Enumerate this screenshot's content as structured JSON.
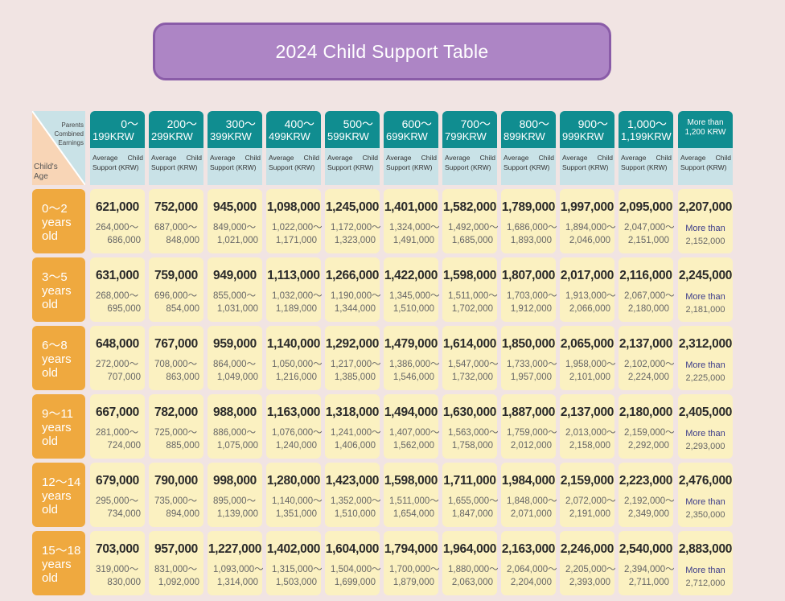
{
  "title": "2024 Child Support  Table",
  "corner": {
    "top_label": [
      "Parents",
      "Combined",
      "Earnings"
    ],
    "bottom_label": [
      "Child's",
      "Age"
    ]
  },
  "columns": [
    {
      "r1": "0〜",
      "r2": "199KRW",
      "sub": "Average Child Support (KRW)"
    },
    {
      "r1": "200〜",
      "r2": "299KRW",
      "sub": "Average Child Support (KRW)"
    },
    {
      "r1": "300〜",
      "r2": "399KRW",
      "sub": "Average Child Support (KRW)"
    },
    {
      "r1": "400〜",
      "r2": "499KRW",
      "sub": "Average Child Support (KRW)"
    },
    {
      "r1": "500〜",
      "r2": "599KRW",
      "sub": "Average Child Support (KRW)"
    },
    {
      "r1": "600〜",
      "r2": "699KRW",
      "sub": "Average Child Support (KRW)"
    },
    {
      "r1": "700〜",
      "r2": "799KRW",
      "sub": "Average Child Support (KRW)"
    },
    {
      "r1": "800〜",
      "r2": "899KRW",
      "sub": "Average Child Support (KRW)"
    },
    {
      "r1": "900〜",
      "r2": "999KRW",
      "sub": "Average Child Support (KRW)"
    },
    {
      "r1": "1,000〜",
      "r2": "1,199KRW",
      "sub": "Average Child Support (KRW)"
    },
    {
      "r1": "More than",
      "r2": "1,200 KRW",
      "sub": "Average Child Support (KRW)",
      "more": true
    }
  ],
  "rows": [
    {
      "age": [
        "0〜2",
        "years",
        "old"
      ],
      "cells": [
        [
          "621,000",
          "264,000〜",
          "686,000"
        ],
        [
          "752,000",
          "687,000〜",
          "848,000"
        ],
        [
          "945,000",
          "849,000〜",
          "1,021,000"
        ],
        [
          "1,098,000",
          "1,022,000〜",
          "1,171,000"
        ],
        [
          "1,245,000",
          "1,172,000〜",
          "1,323,000"
        ],
        [
          "1,401,000",
          "1,324,000〜",
          "1,491,000"
        ],
        [
          "1,582,000",
          "1,492,000〜",
          "1,685,000"
        ],
        [
          "1,789,000",
          "1,686,000〜",
          "1,893,000"
        ],
        [
          "1,997,000",
          "1,894,000〜",
          "2,046,000"
        ],
        [
          "2,095,000",
          "2,047,000〜",
          "2,151,000"
        ],
        [
          "2,207,000",
          "More than",
          "2,152,000"
        ]
      ]
    },
    {
      "age": [
        "3〜5",
        "years",
        "old"
      ],
      "cells": [
        [
          "631,000",
          "268,000〜",
          "695,000"
        ],
        [
          "759,000",
          "696,000〜",
          "854,000"
        ],
        [
          "949,000",
          "855,000〜",
          "1,031,000"
        ],
        [
          "1,113,000",
          "1,032,000〜",
          "1,189,000"
        ],
        [
          "1,266,000",
          "1,190,000〜",
          "1,344,000"
        ],
        [
          "1,422,000",
          "1,345,000〜",
          "1,510,000"
        ],
        [
          "1,598,000",
          "1,511,000〜",
          "1,702,000"
        ],
        [
          "1,807,000",
          "1,703,000〜",
          "1,912,000"
        ],
        [
          "2,017,000",
          "1,913,000〜",
          "2,066,000"
        ],
        [
          "2,116,000",
          "2,067,000〜",
          "2,180,000"
        ],
        [
          "2,245,000",
          "More than",
          "2,181,000"
        ]
      ]
    },
    {
      "age": [
        "6〜8",
        "years",
        "old"
      ],
      "cells": [
        [
          "648,000",
          "272,000〜",
          "707,000"
        ],
        [
          "767,000",
          "708,000〜",
          "863,000"
        ],
        [
          "959,000",
          "864,000〜",
          "1,049,000"
        ],
        [
          "1,140,000",
          "1,050,000〜",
          "1,216,000"
        ],
        [
          "1,292,000",
          "1,217,000〜",
          "1,385,000"
        ],
        [
          "1,479,000",
          "1,386,000〜",
          "1,546,000"
        ],
        [
          "1,614,000",
          "1,547,000〜",
          "1,732,000"
        ],
        [
          "1,850,000",
          "1,733,000〜",
          "1,957,000"
        ],
        [
          "2,065,000",
          "1,958,000〜",
          "2,101,000"
        ],
        [
          "2,137,000",
          "2,102,000〜",
          "2,224,000"
        ],
        [
          "2,312,000",
          "More than",
          "2,225,000"
        ]
      ]
    },
    {
      "age": [
        "9〜11",
        "years",
        "old"
      ],
      "cells": [
        [
          "667,000",
          "281,000〜",
          "724,000"
        ],
        [
          "782,000",
          "725,000〜",
          "885,000"
        ],
        [
          "988,000",
          "886,000〜",
          "1,075,000"
        ],
        [
          "1,163,000",
          "1,076,000〜",
          "1,240,000"
        ],
        [
          "1,318,000",
          "1,241,000〜",
          "1,406,000"
        ],
        [
          "1,494,000",
          "1,407,000〜",
          "1,562,000"
        ],
        [
          "1,630,000",
          "1,563,000〜",
          "1,758,000"
        ],
        [
          "1,887,000",
          "1,759,000〜",
          "2,012,000"
        ],
        [
          "2,137,000",
          "2,013,000〜",
          "2,158,000"
        ],
        [
          "2,180,000",
          "2,159,000〜",
          "2,292,000"
        ],
        [
          "2,405,000",
          "More than",
          "2,293,000"
        ]
      ]
    },
    {
      "age": [
        "12〜14",
        "years",
        "old"
      ],
      "cells": [
        [
          "679,000",
          "295,000〜",
          "734,000"
        ],
        [
          "790,000",
          "735,000〜",
          "894,000"
        ],
        [
          "998,000",
          "895,000〜",
          "1,139,000"
        ],
        [
          "1,280,000",
          "1,140,000〜",
          "1,351,000"
        ],
        [
          "1,423,000",
          "1,352,000〜",
          "1,510,000"
        ],
        [
          "1,598,000",
          "1,511,000〜",
          "1,654,000"
        ],
        [
          "1,711,000",
          "1,655,000〜",
          "1,847,000"
        ],
        [
          "1,984,000",
          "1,848,000〜",
          "2,071,000"
        ],
        [
          "2,159,000",
          "2,072,000〜",
          "2,191,000"
        ],
        [
          "2,223,000",
          "2,192,000〜",
          "2,349,000"
        ],
        [
          "2,476,000",
          "More than",
          "2,350,000"
        ]
      ]
    },
    {
      "age": [
        "15〜18",
        "years",
        "old"
      ],
      "cells": [
        [
          "703,000",
          "319,000〜",
          "830,000"
        ],
        [
          "957,000",
          "831,000〜",
          "1,092,000"
        ],
        [
          "1,227,000",
          "1,093,000〜",
          "1,314,000"
        ],
        [
          "1,402,000",
          "1,315,000〜",
          "1,503,000"
        ],
        [
          "1,604,000",
          "1,504,000〜",
          "1,699,000"
        ],
        [
          "1,794,000",
          "1,700,000〜",
          "1,879,000"
        ],
        [
          "1,964,000",
          "1,880,000〜",
          "2,063,000"
        ],
        [
          "2,163,000",
          "2,064,000〜",
          "2,204,000"
        ],
        [
          "2,246,000",
          "2,205,000〜",
          "2,393,000"
        ],
        [
          "2,540,000",
          "2,394,000〜",
          "2,711,000"
        ],
        [
          "2,883,000",
          "More than",
          "2,712,000"
        ]
      ]
    }
  ]
}
